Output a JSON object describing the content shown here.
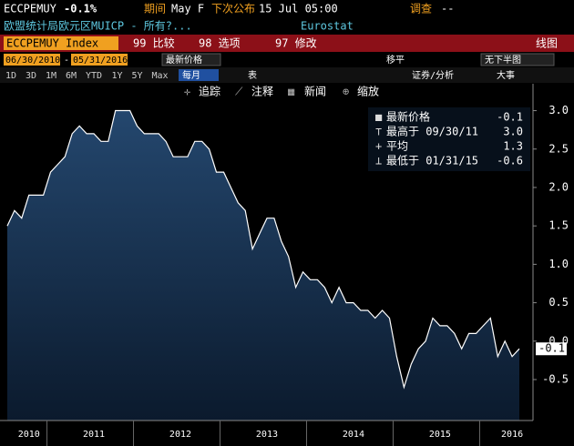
{
  "header": {
    "ticker": "ECCPEMUY",
    "change": "-0.1%",
    "period_label": "期间",
    "period": "May F",
    "next_release_label": "下次公布",
    "next_release": "15 Jul 05:00",
    "survey_label": "调查",
    "survey": "--",
    "description": "欧盟统计局欧元区MUICP - 所有?...",
    "source": "Eurostat"
  },
  "command_bar": {
    "security": "ECCPEMUY Index",
    "buttons": [
      "99 比较",
      "98 选项",
      "97 修改"
    ],
    "view": "线图"
  },
  "controls": {
    "start_date": "06/30/2010",
    "separator": "-",
    "end_date": "05/31/2016",
    "field": "最新价格",
    "smoothing": "移平",
    "lower_chart": "无下半图",
    "periods": [
      "1D",
      "3D",
      "1M",
      "6M",
      "YTD",
      "1Y",
      "5Y",
      "Max"
    ],
    "frequency": "每月",
    "table": "表",
    "analysis": "证券/分析",
    "events": "大事"
  },
  "tools": [
    "追踪",
    "注释",
    "新闻",
    "缩放"
  ],
  "chart_data": {
    "type": "area",
    "categories": [
      null,
      null,
      null,
      "2010",
      null,
      null,
      null,
      null,
      null,
      null,
      null,
      null,
      "2011",
      null,
      null,
      null,
      null,
      null,
      null,
      null,
      null,
      null,
      null,
      null,
      "2012",
      null,
      null,
      null,
      null,
      null,
      null,
      null,
      null,
      null,
      null,
      null,
      "2013",
      null,
      null,
      null,
      null,
      null,
      null,
      null,
      null,
      null,
      null,
      null,
      "2014",
      null,
      null,
      null,
      null,
      null,
      null,
      null,
      null,
      null,
      null,
      null,
      "2015",
      null,
      null,
      null,
      null,
      null,
      null,
      null,
      null,
      null,
      "2016",
      null
    ],
    "series": [
      {
        "name": "最新价格",
        "color": "#ffffff",
        "values": [
          1.5,
          1.7,
          1.6,
          1.9,
          1.9,
          1.9,
          2.2,
          2.3,
          2.4,
          2.7,
          2.8,
          2.7,
          2.7,
          2.6,
          2.6,
          3.0,
          3.0,
          3.0,
          2.8,
          2.7,
          2.7,
          2.7,
          2.6,
          2.4,
          2.4,
          2.4,
          2.6,
          2.6,
          2.5,
          2.2,
          2.2,
          2.0,
          1.8,
          1.7,
          1.2,
          1.4,
          1.6,
          1.6,
          1.3,
          1.1,
          0.7,
          0.9,
          0.8,
          0.8,
          0.7,
          0.5,
          0.7,
          0.5,
          0.5,
          0.4,
          0.4,
          0.3,
          0.4,
          0.3,
          -0.2,
          -0.6,
          -0.3,
          -0.1,
          0.0,
          0.3,
          0.2,
          0.2,
          0.1,
          -0.1,
          0.1,
          0.1,
          0.2,
          0.3,
          -0.2,
          0.0,
          -0.2,
          -0.1
        ]
      }
    ],
    "legend_stats": [
      {
        "label": "最新价格",
        "value": -0.1
      },
      {
        "label": "最高于 09/30/11",
        "value": 3.0,
        "value_label": "3.0"
      },
      {
        "label": "平均",
        "value": 1.3
      },
      {
        "label": "最低于 01/31/15",
        "value": -0.6
      }
    ],
    "ylim": [
      -0.95,
      3.35
    ],
    "yticks": [
      -0.5,
      {
        "value": 0,
        "label": "0.0"
      },
      0.5,
      {
        "value": 1,
        "label": "1.0"
      },
      1.5,
      {
        "value": 2,
        "label": "2.0"
      },
      2.5,
      {
        "value": 3,
        "label": "3.0"
      }
    ]
  }
}
